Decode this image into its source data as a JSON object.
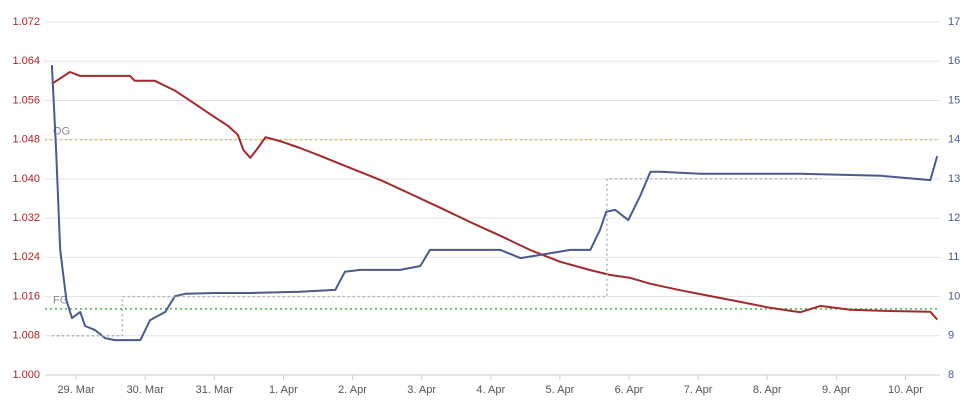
{
  "chart_data": {
    "type": "line",
    "xlim": [
      -0.45,
      12.5
    ],
    "xticks": [
      {
        "value": 0,
        "label": "29. Mar"
      },
      {
        "value": 1,
        "label": "30. Mar"
      },
      {
        "value": 2,
        "label": "31. Mar"
      },
      {
        "value": 3,
        "label": "1. Apr"
      },
      {
        "value": 4,
        "label": "2. Apr"
      },
      {
        "value": 5,
        "label": "3. Apr"
      },
      {
        "value": 6,
        "label": "4. Apr"
      },
      {
        "value": 7,
        "label": "5. Apr"
      },
      {
        "value": 8,
        "label": "6. Apr"
      },
      {
        "value": 9,
        "label": "7. Apr"
      },
      {
        "value": 10,
        "label": "8. Apr"
      },
      {
        "value": 11,
        "label": "9. Apr"
      },
      {
        "value": 12,
        "label": "10. Apr"
      }
    ],
    "ylim": [
      1.0,
      1.072
    ],
    "yticks": [
      {
        "value": 1.0,
        "label": "1.000"
      },
      {
        "value": 1.008,
        "label": "1.008"
      },
      {
        "value": 1.016,
        "label": "1.016"
      },
      {
        "value": 1.024,
        "label": "1.024"
      },
      {
        "value": 1.032,
        "label": "1.032"
      },
      {
        "value": 1.04,
        "label": "1.040"
      },
      {
        "value": 1.048,
        "label": "1.048"
      },
      {
        "value": 1.056,
        "label": "1.056"
      },
      {
        "value": 1.064,
        "label": "1.064"
      },
      {
        "value": 1.072,
        "label": "1.072"
      }
    ],
    "y2lim": [
      8,
      17
    ],
    "y2ticks": [
      8,
      9,
      10,
      11,
      12,
      13,
      14,
      15,
      16,
      17
    ],
    "y_color": "#a3282c",
    "y2_color": "#4a5a8e",
    "grid": true,
    "annotations": [
      {
        "label": "OG",
        "value": 1.048,
        "color": "#cfc46a"
      },
      {
        "label": "FG",
        "value": 1.0135,
        "color": "#4caf50"
      }
    ],
    "series": [
      {
        "color": "#a3282c",
        "axis": "y",
        "x": [
          -0.35,
          -0.09,
          0.06,
          0.78,
          0.85,
          1.14,
          1.43,
          1.72,
          1.94,
          2.2,
          2.34,
          2.42,
          2.52,
          2.63,
          2.74,
          2.95,
          3.24,
          3.53,
          3.97,
          4.4,
          4.83,
          5.27,
          5.7,
          6.14,
          6.57,
          7.0,
          7.44,
          7.73,
          8.02,
          8.31,
          8.74,
          9.18,
          9.61,
          10.04,
          10.48,
          10.77,
          11.2,
          11.64,
          12.36,
          12.46
        ],
        "values": [
          1.0594,
          1.0618,
          1.061,
          1.061,
          1.06,
          1.06,
          1.058,
          1.0553,
          1.0532,
          1.0508,
          1.049,
          1.0459,
          1.0443,
          1.0463,
          1.0485,
          1.0477,
          1.0463,
          1.0447,
          1.0422,
          1.0398,
          1.037,
          1.0341,
          1.0312,
          1.0284,
          1.0255,
          1.0231,
          1.0214,
          1.0204,
          1.0198,
          1.0186,
          1.0173,
          1.0161,
          1.0149,
          1.0137,
          1.0128,
          1.0141,
          1.0133,
          1.0131,
          1.0129,
          1.0113
        ]
      },
      {
        "color": "#4a5a8e",
        "axis": "y2",
        "x": [
          -0.35,
          -0.29,
          -0.23,
          -0.14,
          -0.06,
          0.06,
          0.13,
          0.27,
          0.42,
          0.56,
          0.93,
          1.07,
          1.29,
          1.43,
          1.58,
          2.01,
          2.52,
          3.24,
          3.75,
          3.89,
          4.11,
          4.69,
          4.98,
          5.12,
          5.41,
          6.14,
          6.43,
          6.71,
          7.15,
          7.44,
          7.58,
          7.67,
          7.8,
          7.99,
          8.16,
          8.31,
          8.45,
          9.03,
          10.48,
          11.64,
          12.36,
          12.46
        ],
        "values": [
          15.9,
          13.74,
          11.19,
          9.91,
          9.45,
          9.61,
          9.25,
          9.15,
          8.94,
          8.89,
          8.89,
          9.4,
          9.61,
          10.01,
          10.07,
          10.09,
          10.09,
          10.12,
          10.17,
          10.63,
          10.68,
          10.68,
          10.78,
          11.19,
          11.19,
          11.19,
          10.98,
          11.06,
          11.19,
          11.19,
          11.7,
          12.16,
          12.21,
          11.95,
          12.56,
          13.18,
          13.18,
          13.13,
          13.13,
          13.08,
          12.97,
          13.58
        ]
      },
      {
        "color": "#b0b0c0",
        "axis": "y2",
        "dotted": true,
        "x": [
          -0.35,
          0.67,
          0.67,
          7.68,
          7.68,
          10.77
        ],
        "values": [
          9,
          9,
          10,
          10,
          13,
          13
        ]
      }
    ]
  }
}
